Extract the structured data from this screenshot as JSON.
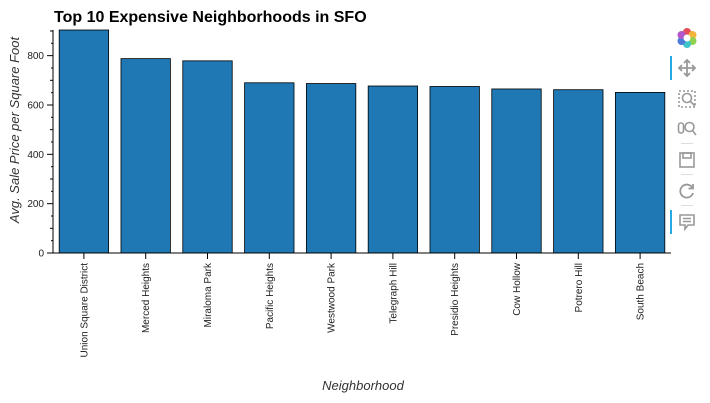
{
  "chart_data": {
    "type": "bar",
    "title": "Top 10 Expensive Neighborhoods in SFO",
    "xlabel": "Neighborhood",
    "ylabel": "Avg. Sale Price per Square Foot",
    "categories": [
      "Union Square District",
      "Merced Heights",
      "Miraloma Park",
      "Pacific Heights",
      "Westwood Park",
      "Telegraph Hill",
      "Presidio Heights",
      "Cow Hollow",
      "Potrero Hill",
      "South Beach"
    ],
    "values": [
      904,
      788,
      779,
      690,
      687,
      677,
      675,
      665,
      662,
      651
    ],
    "ylim": [
      0,
      904
    ],
    "yticks": [
      0,
      200,
      400,
      600,
      800
    ],
    "bar_color": "#1f77b4",
    "bar_outline": "#000000"
  },
  "toolbar": {
    "tools": [
      "bokeh-logo-icon",
      "pan-icon",
      "box-zoom-icon",
      "wheel-zoom-icon",
      "save-icon",
      "reset-icon",
      "hover-icon"
    ]
  }
}
